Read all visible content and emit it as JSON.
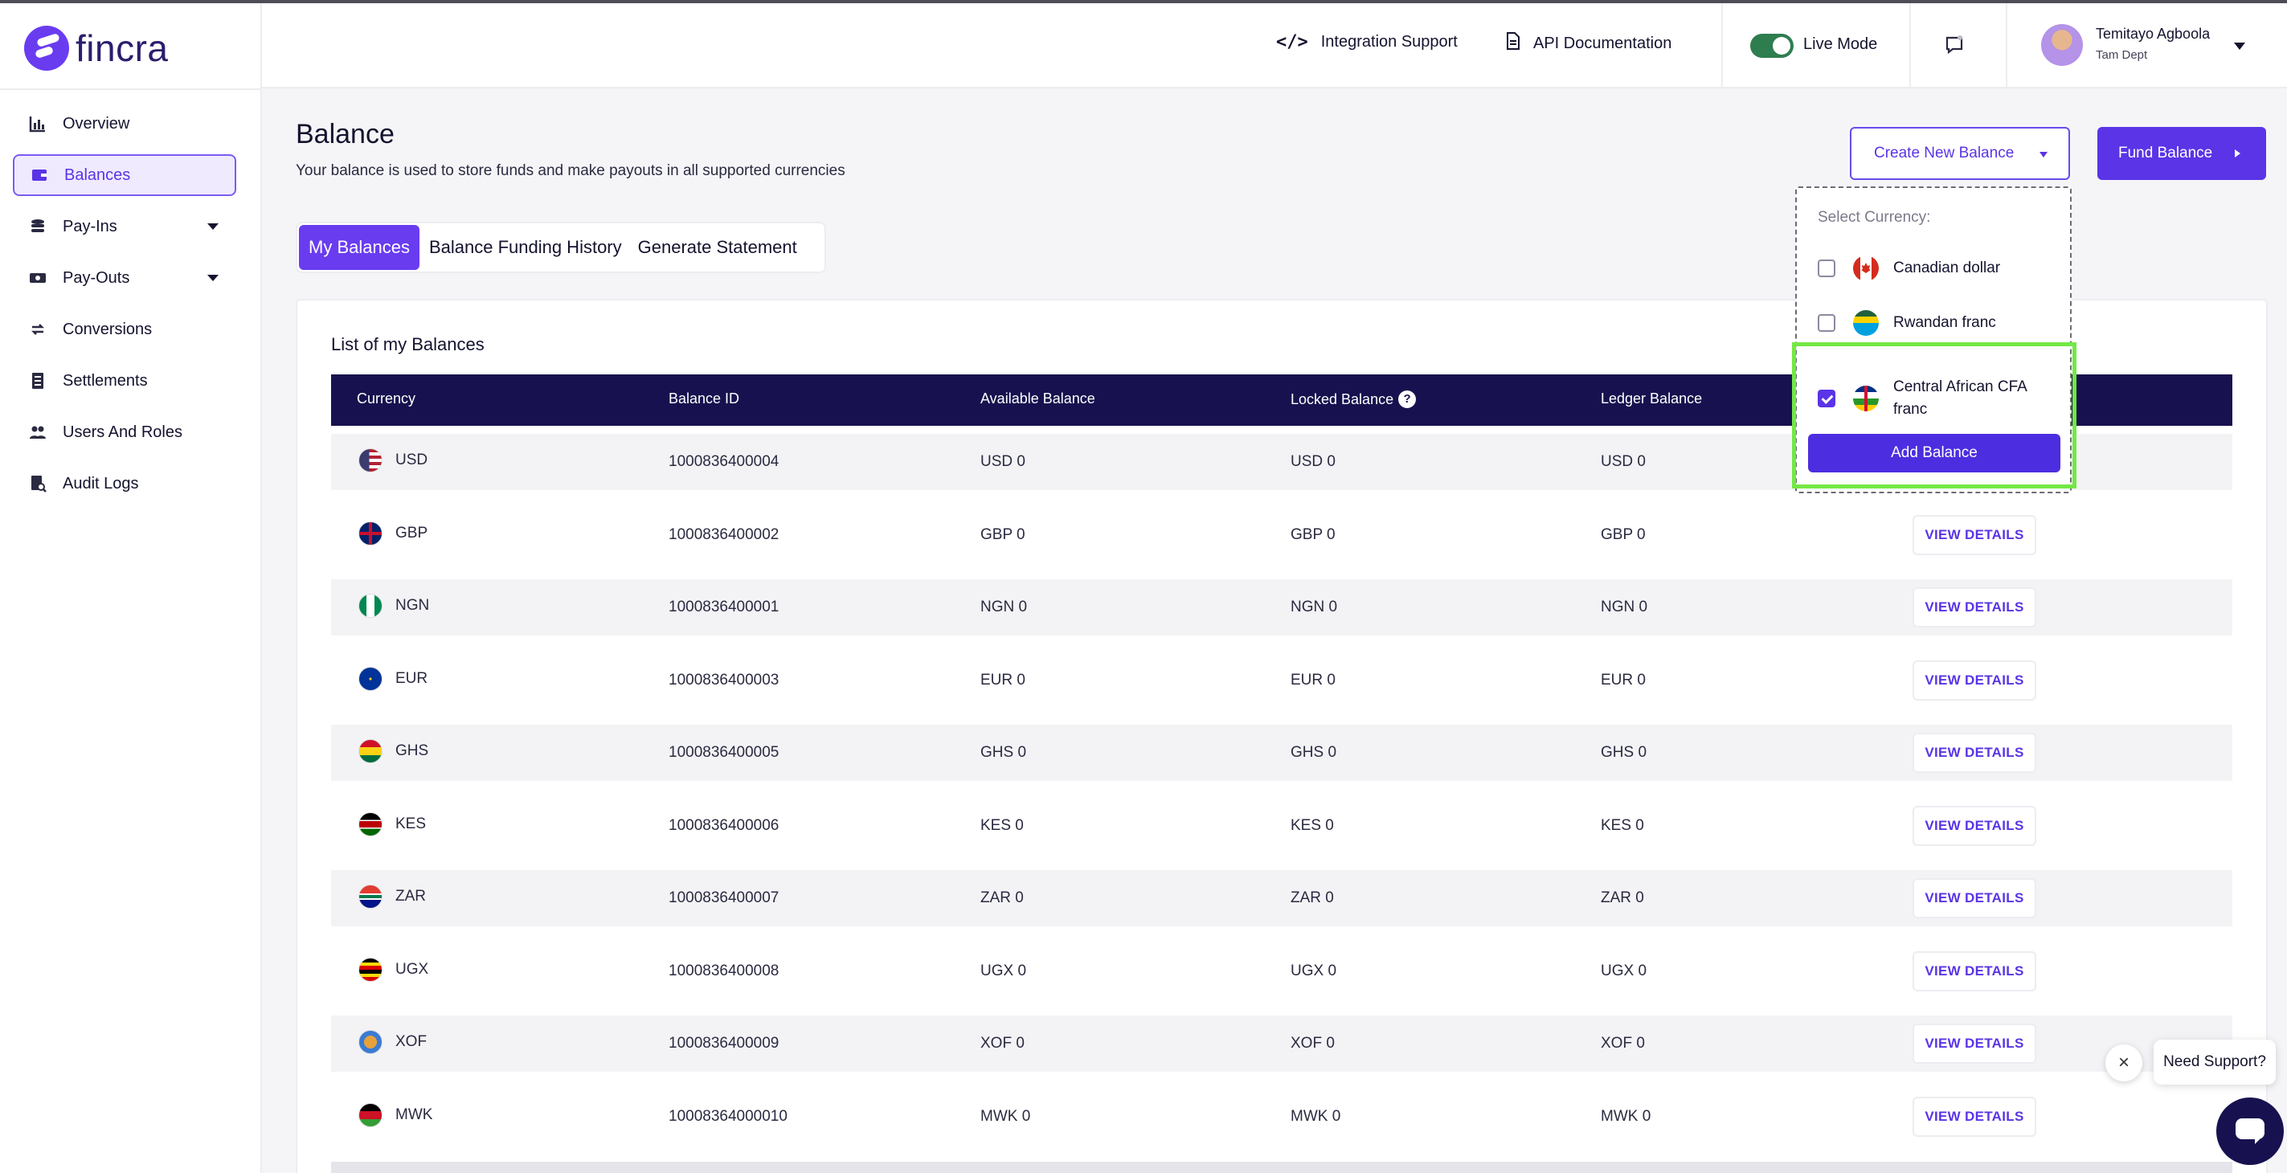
{
  "app": {
    "logo_text": "fincra",
    "brand_color": "#6a3cf0",
    "nav_bg": "#17124f"
  },
  "sidebar": {
    "items": [
      {
        "label": "Overview",
        "icon": "chart-icon",
        "active": false
      },
      {
        "label": "Balances",
        "icon": "wallet-icon",
        "active": true
      },
      {
        "label": "Pay-Ins",
        "icon": "coins-icon",
        "active": false,
        "has_caret": true
      },
      {
        "label": "Pay-Outs",
        "icon": "cash-icon",
        "active": false,
        "has_caret": true
      },
      {
        "label": "Conversions",
        "icon": "exchange-icon",
        "active": false
      },
      {
        "label": "Settlements",
        "icon": "ledger-icon",
        "active": false
      },
      {
        "label": "Users And Roles",
        "icon": "users-icon",
        "active": false
      },
      {
        "label": "Audit Logs",
        "icon": "audit-icon",
        "active": false
      }
    ]
  },
  "header": {
    "integration_support": "Integration Support",
    "api_documentation": "API Documentation",
    "live_mode_label": "Live Mode",
    "live_mode_on": true,
    "user_name": "Temitayo Agboola",
    "user_dept": "Tam Dept"
  },
  "page": {
    "title": "Balance",
    "subtitle": "Your balance is used to store funds and make payouts in all supported currencies",
    "create_button": "Create New Balance",
    "fund_button": "Fund Balance"
  },
  "tabs": [
    {
      "label": "My Balances",
      "active": true
    },
    {
      "label": "Balance Funding History",
      "active": false
    },
    {
      "label": "Generate Statement",
      "active": false
    }
  ],
  "table": {
    "title": "List of my Balances",
    "columns": [
      "Currency",
      "Balance ID",
      "Available Balance",
      "Locked Balance",
      "Ledger Balance"
    ],
    "action_label": "VIEW DETAILS",
    "rows": [
      {
        "currency": "USD",
        "id": "1000836400004",
        "available": "USD 0",
        "locked": "USD 0",
        "ledger": "USD 0",
        "flag": "us"
      },
      {
        "currency": "GBP",
        "id": "1000836400002",
        "available": "GBP 0",
        "locked": "GBP 0",
        "ledger": "GBP 0",
        "flag": "gb"
      },
      {
        "currency": "NGN",
        "id": "1000836400001",
        "available": "NGN 0",
        "locked": "NGN 0",
        "ledger": "NGN 0",
        "flag": "ng"
      },
      {
        "currency": "EUR",
        "id": "1000836400003",
        "available": "EUR 0",
        "locked": "EUR 0",
        "ledger": "EUR 0",
        "flag": "eu"
      },
      {
        "currency": "GHS",
        "id": "1000836400005",
        "available": "GHS 0",
        "locked": "GHS 0",
        "ledger": "GHS 0",
        "flag": "gh"
      },
      {
        "currency": "KES",
        "id": "1000836400006",
        "available": "KES 0",
        "locked": "KES 0",
        "ledger": "KES 0",
        "flag": "ke"
      },
      {
        "currency": "ZAR",
        "id": "1000836400007",
        "available": "ZAR 0",
        "locked": "ZAR 0",
        "ledger": "ZAR 0",
        "flag": "za"
      },
      {
        "currency": "UGX",
        "id": "1000836400008",
        "available": "UGX 0",
        "locked": "UGX 0",
        "ledger": "UGX 0",
        "flag": "ug"
      },
      {
        "currency": "XOF",
        "id": "1000836400009",
        "available": "XOF 0",
        "locked": "XOF 0",
        "ledger": "XOF 0",
        "flag": "xof"
      },
      {
        "currency": "MWK",
        "id": "10008364000010",
        "available": "MWK 0",
        "locked": "MWK 0",
        "ledger": "MWK 0",
        "flag": "mw"
      }
    ]
  },
  "dropdown": {
    "label": "Select Currency:",
    "options": [
      {
        "label": "Canadian dollar",
        "checked": false,
        "flag": "ca"
      },
      {
        "label": "Rwandan franc",
        "checked": false,
        "flag": "rw"
      },
      {
        "label": "Central African CFA franc",
        "checked": true,
        "flag": "cf"
      }
    ],
    "add_button": "Add Balance",
    "highlight_color": "#73e845"
  },
  "support": {
    "bubble_text": "Need Support?"
  }
}
